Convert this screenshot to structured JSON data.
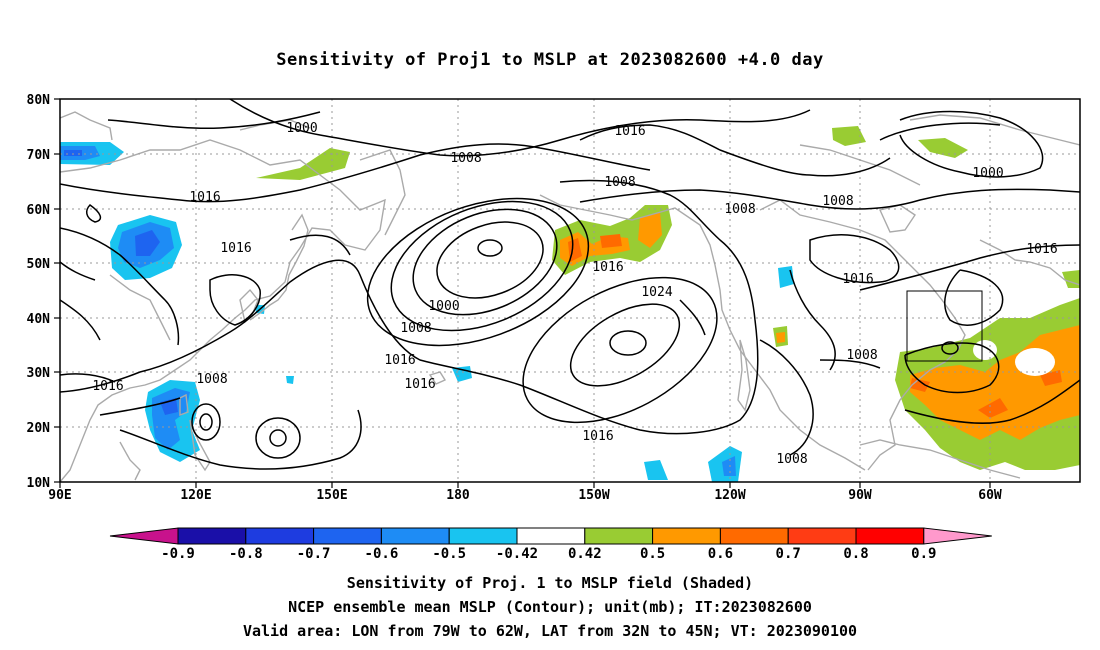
{
  "title": "Sensitivity of Proj1 to MSLP at 2023082600 +4.0 day",
  "lat_labels": [
    "80N",
    "70N",
    "60N",
    "50N",
    "40N",
    "30N",
    "20N",
    "10N"
  ],
  "lon_labels": [
    "90E",
    "120E",
    "150E",
    "180",
    "150W",
    "120W",
    "90W",
    "60W"
  ],
  "contour_labels": {
    "c1000a": "1000",
    "c1008a": "1008",
    "c1016a": "1016",
    "c1008b": "1008",
    "c1016b": "1016",
    "c1000b": "1000",
    "c1016c": "1016",
    "c1016d": "1016",
    "c1008c": "1008",
    "c1000c": "1000",
    "c1008d": "1008",
    "c1016e": "1016",
    "c1016f": "1016",
    "c1024": "1024",
    "c1016g": "1016",
    "c1008e": "1008",
    "c1016h": "1016",
    "c1008f": "1008",
    "c1016i": "1016",
    "c1008g": "1008"
  },
  "colorbar": {
    "labels": [
      "-0.9",
      "-0.8",
      "-0.7",
      "-0.6",
      "-0.5",
      "-0.42",
      "0.42",
      "0.5",
      "0.6",
      "0.7",
      "0.8",
      "0.9"
    ],
    "colors": [
      "#1a0fa8",
      "#1e3ce0",
      "#1e64f0",
      "#1e8cf5",
      "#19c4f0",
      "#ffffff",
      "#99cc33",
      "#ff9900",
      "#ff6a00",
      "#ff3c14",
      "#ff0000"
    ],
    "low_color": "#c8128c",
    "high_color": "#ff99cc"
  },
  "captions": {
    "line1": "Sensitivity of Proj. 1 to MSLP field (Shaded)",
    "line2": "NCEP ensemble mean MSLP (Contour); unit(mb); IT:2023082600",
    "line3": "Valid area: LON from 79W to 62W, LAT from 32N to 45N; VT: 2023090100"
  }
}
